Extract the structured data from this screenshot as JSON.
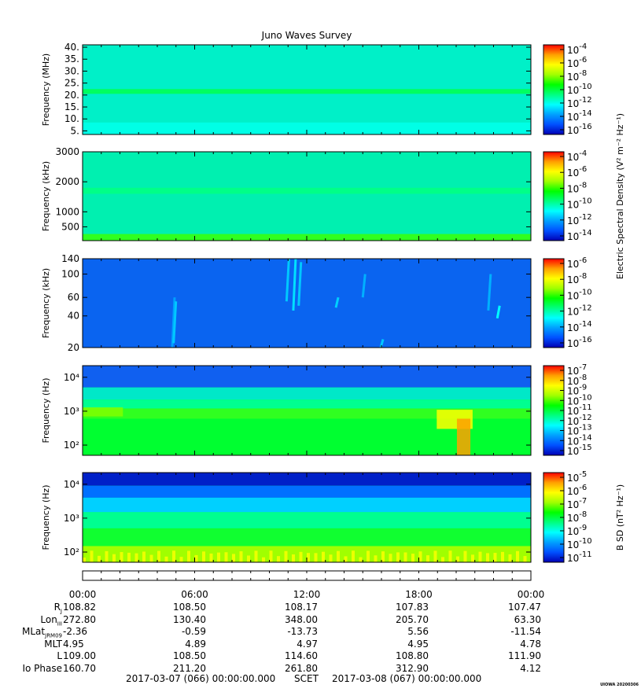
{
  "title": "Juno Waves Survey",
  "stamp": "UIOWA 20200306",
  "colormap": [
    "#0000b4",
    "#0050ff",
    "#00a0ff",
    "#00ffff",
    "#00ff80",
    "#00ff00",
    "#a0ff00",
    "#ffff00",
    "#ffa000",
    "#ff0000"
  ],
  "chart_data": [
    {
      "type": "heatmap",
      "name": "HFR high band",
      "ylabel": "Frequency (MHz)",
      "yscale": "linear",
      "ylim": [
        3.5,
        41
      ],
      "yticks": [
        {
          "v": 40,
          "label": "40."
        },
        {
          "v": 35,
          "label": "35."
        },
        {
          "v": 30,
          "label": "30."
        },
        {
          "v": 25,
          "label": "25."
        },
        {
          "v": 20,
          "label": "20."
        },
        {
          "v": 15,
          "label": "15."
        },
        {
          "v": 10,
          "label": "10."
        },
        {
          "v": 5,
          "label": "5."
        }
      ],
      "background": "#00f0c8",
      "bands": [
        {
          "y0": 20.5,
          "y1": 22.5,
          "color": "#00ff60"
        },
        {
          "y0": 3.5,
          "y1": 8.5,
          "color": "#00ffe6"
        }
      ],
      "colorbar": {
        "ticks": [
          "-4",
          "-6",
          "-8",
          "-10",
          "-12",
          "-14",
          "-16"
        ],
        "label": ""
      }
    },
    {
      "type": "heatmap",
      "name": "HFR low band",
      "ylabel": "Frequency (kHz)",
      "yscale": "linear",
      "ylim": [
        40,
        3000
      ],
      "yticks": [
        {
          "v": 3000,
          "label": "3000"
        },
        {
          "v": 2000,
          "label": "2000"
        },
        {
          "v": 1000,
          "label": "1000"
        },
        {
          "v": 500,
          "label": "500"
        }
      ],
      "background": "#00f0b0",
      "bands": [
        {
          "y0": 1600,
          "y1": 1800,
          "color": "#00ff88"
        },
        {
          "y0": 40,
          "y1": 260,
          "color": "#30ff20"
        }
      ],
      "colorbar": {
        "ticks": [
          "-4",
          "-6",
          "-8",
          "-10",
          "-12",
          "-14"
        ],
        "label": "Electric Spectral Density (V² m⁻² Hz⁻¹)"
      }
    },
    {
      "type": "heatmap",
      "name": "LFR high",
      "ylabel": "Frequency (kHz)",
      "yscale": "log",
      "ylim": [
        20,
        140
      ],
      "yticks": [
        {
          "v": 140,
          "label": "140"
        },
        {
          "v": 100,
          "label": "100"
        },
        {
          "v": 60,
          "label": "60"
        },
        {
          "v": 40,
          "label": "40"
        },
        {
          "v": 20,
          "label": "20"
        }
      ],
      "background": "#0a64f0",
      "bands": [],
      "colorbar": {
        "ticks": [
          "-6",
          "-8",
          "-10",
          "-12",
          "-14",
          "-16"
        ],
        "label": ""
      }
    },
    {
      "type": "heatmap",
      "name": "LFR low",
      "ylabel": "Frequency (Hz)",
      "yscale": "log",
      "ylim": [
        50,
        22000
      ],
      "yticks": [
        {
          "v": 10000,
          "label": "10⁴"
        },
        {
          "v": 1000,
          "label": "10³"
        },
        {
          "v": 100,
          "label": "10²"
        }
      ],
      "background": "#00ff40",
      "bands": [
        {
          "y0": 5000,
          "y1": 22000,
          "color": "#1060f0"
        },
        {
          "y0": 2200,
          "y1": 5000,
          "color": "#00e8c8"
        },
        {
          "y0": 1200,
          "y1": 2200,
          "color": "#00ff90"
        },
        {
          "y0": 600,
          "y1": 1200,
          "color": "#30ff20"
        },
        {
          "y0": 50,
          "y1": 600,
          "color": "#00ff30"
        }
      ],
      "colorbar": {
        "ticks": [
          "-7",
          "-8",
          "-9",
          "-10",
          "-11",
          "-12",
          "-13",
          "-14",
          "-15"
        ],
        "label": ""
      }
    },
    {
      "type": "heatmap",
      "name": "Magnetic",
      "ylabel": "Frequency (Hz)",
      "yscale": "log",
      "ylim": [
        50,
        22000
      ],
      "yticks": [
        {
          "v": 10000,
          "label": "10⁴"
        },
        {
          "v": 1000,
          "label": "10³"
        },
        {
          "v": 100,
          "label": "10²"
        }
      ],
      "background": "#00ff60",
      "bands": [
        {
          "y0": 9000,
          "y1": 22000,
          "color": "#0020c8"
        },
        {
          "y0": 4000,
          "y1": 9000,
          "color": "#0070ff"
        },
        {
          "y0": 1500,
          "y1": 4000,
          "color": "#00d0ff"
        },
        {
          "y0": 500,
          "y1": 1500,
          "color": "#00ff90"
        },
        {
          "y0": 150,
          "y1": 500,
          "color": "#10ff30"
        },
        {
          "y0": 50,
          "y1": 150,
          "color": "#a0ff00"
        }
      ],
      "colorbar": {
        "ticks": [
          "-5",
          "-6",
          "-7",
          "-8",
          "-9",
          "-10",
          "-11"
        ],
        "label": "B SD (nT² Hz⁻¹)"
      }
    }
  ],
  "features": {
    "p3_streaks": [
      {
        "t": 0.2,
        "y0": 20,
        "y1": 60,
        "color": "#00a0ff"
      },
      {
        "t": 0.203,
        "y0": 22,
        "y1": 55,
        "color": "#00c8ff"
      },
      {
        "t": 0.455,
        "y0": 55,
        "y1": 140,
        "color": "#00c8ff"
      },
      {
        "t": 0.47,
        "y0": 45,
        "y1": 140,
        "color": "#00e0ff"
      },
      {
        "t": 0.482,
        "y0": 50,
        "y1": 130,
        "color": "#00c8ff"
      },
      {
        "t": 0.565,
        "y0": 48,
        "y1": 60,
        "color": "#00d0ff"
      },
      {
        "t": 0.625,
        "y0": 60,
        "y1": 100,
        "color": "#00b0ff"
      },
      {
        "t": 0.665,
        "y0": 20,
        "y1": 24,
        "color": "#00c8ff"
      },
      {
        "t": 0.905,
        "y0": 45,
        "y1": 100,
        "color": "#00b0ff"
      },
      {
        "t": 0.925,
        "y0": 38,
        "y1": 50,
        "color": "#00ffff"
      }
    ],
    "p4_blobs": [
      {
        "t0": 0.79,
        "t1": 0.87,
        "y0": 300,
        "y1": 1100,
        "color": "#ffff00"
      },
      {
        "t0": 0.835,
        "t1": 0.865,
        "y0": 50,
        "y1": 600,
        "color": "#ffa000"
      },
      {
        "t0": 0.0,
        "t1": 0.09,
        "y0": 700,
        "y1": 1300,
        "color": "#80ff00"
      }
    ],
    "p5_fringe": {
      "y0": 50,
      "y1": 110,
      "color": "#ffff00"
    }
  },
  "xticks": [
    "00:00",
    "06:00",
    "12:00",
    "18:00",
    "00:00"
  ],
  "ephemeris": {
    "labels": [
      {
        "main": "R",
        "sub": "J"
      },
      {
        "main": "Lon",
        "sub": "III"
      },
      {
        "main": "MLat",
        "sub": "JRM09"
      },
      {
        "main": "MLT",
        "sub": ""
      },
      {
        "main": "L",
        "sub": ""
      },
      {
        "main": "Io Phase",
        "sub": ""
      }
    ],
    "rows": [
      [
        "108.82",
        "108.50",
        "108.17",
        "107.83",
        "107.47"
      ],
      [
        "272.80",
        "130.40",
        "348.00",
        "205.70",
        "63.30"
      ],
      [
        "-2.36",
        "-0.59",
        "-13.73",
        "5.56",
        "-11.54"
      ],
      [
        "4.95",
        "4.89",
        "4.97",
        "4.95",
        "4.78"
      ],
      [
        "109.00",
        "108.50",
        "114.60",
        "108.80",
        "111.90"
      ],
      [
        "160.70",
        "211.20",
        "261.80",
        "312.90",
        "4.12"
      ]
    ]
  },
  "footer": {
    "start": "2017-03-07 (066) 00:00:00.000",
    "scet": "SCET",
    "end": "2017-03-08 (067) 00:00:00.000"
  }
}
